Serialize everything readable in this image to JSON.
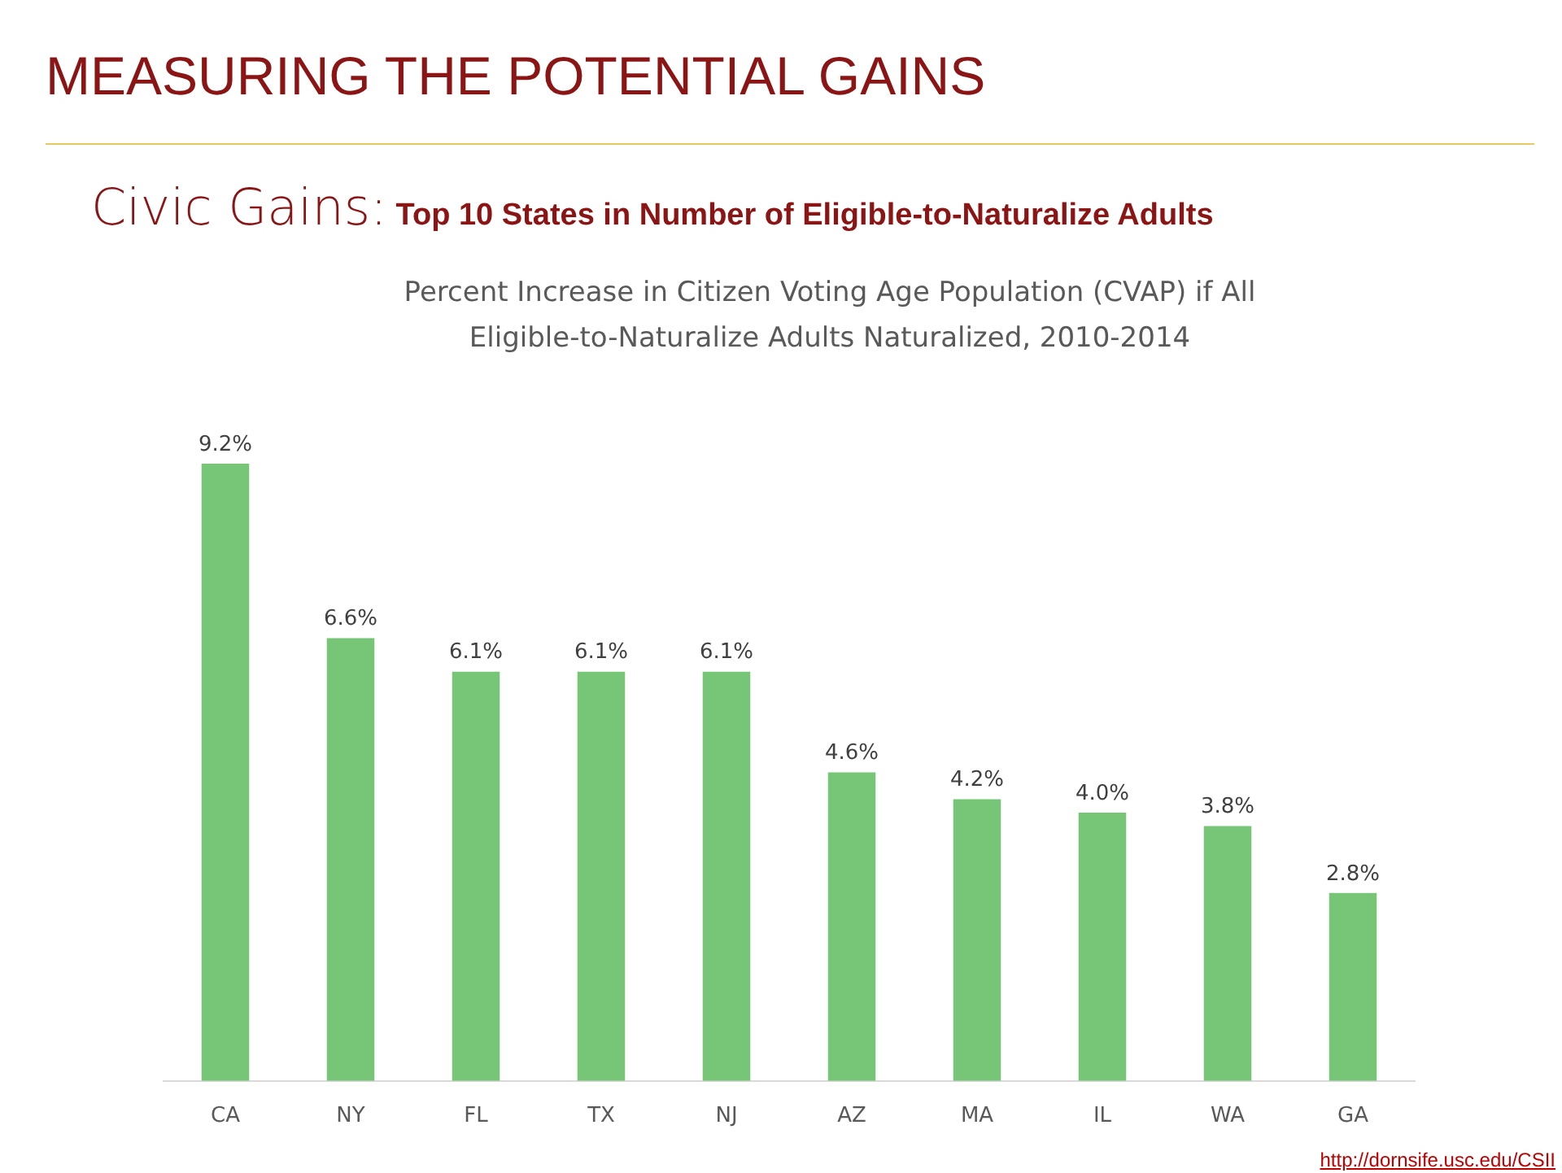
{
  "chart_data": {
    "type": "bar",
    "title": "MEASURING THE POTENTIAL GAINS",
    "subtitle": "Civic Gains: Top 10 States in Number of Eligible-to-Naturalize Adults",
    "annotations": [
      "Percent Increase in Citizen Voting Age Population (CVAP) if All Eligible-to-Naturalize Adults Naturalized, 2010-2014",
      "http://dornsife.usc.edu/CSII"
    ],
    "categories": [
      "CA",
      "NY",
      "FL",
      "TX",
      "NJ",
      "AZ",
      "MA",
      "IL",
      "WA",
      "GA"
    ],
    "values": [
      9.2,
      6.6,
      6.1,
      6.1,
      6.1,
      4.6,
      4.2,
      4.0,
      3.8,
      2.8
    ],
    "value_labels": [
      "9.2%",
      "6.6%",
      "6.1%",
      "6.1%",
      "6.1%",
      "4.6%",
      "4.2%",
      "4.0%",
      "3.8%",
      "2.8%"
    ],
    "color": "#77c577",
    "grid": false,
    "legend": false,
    "tick_labels": "x"
  }
}
